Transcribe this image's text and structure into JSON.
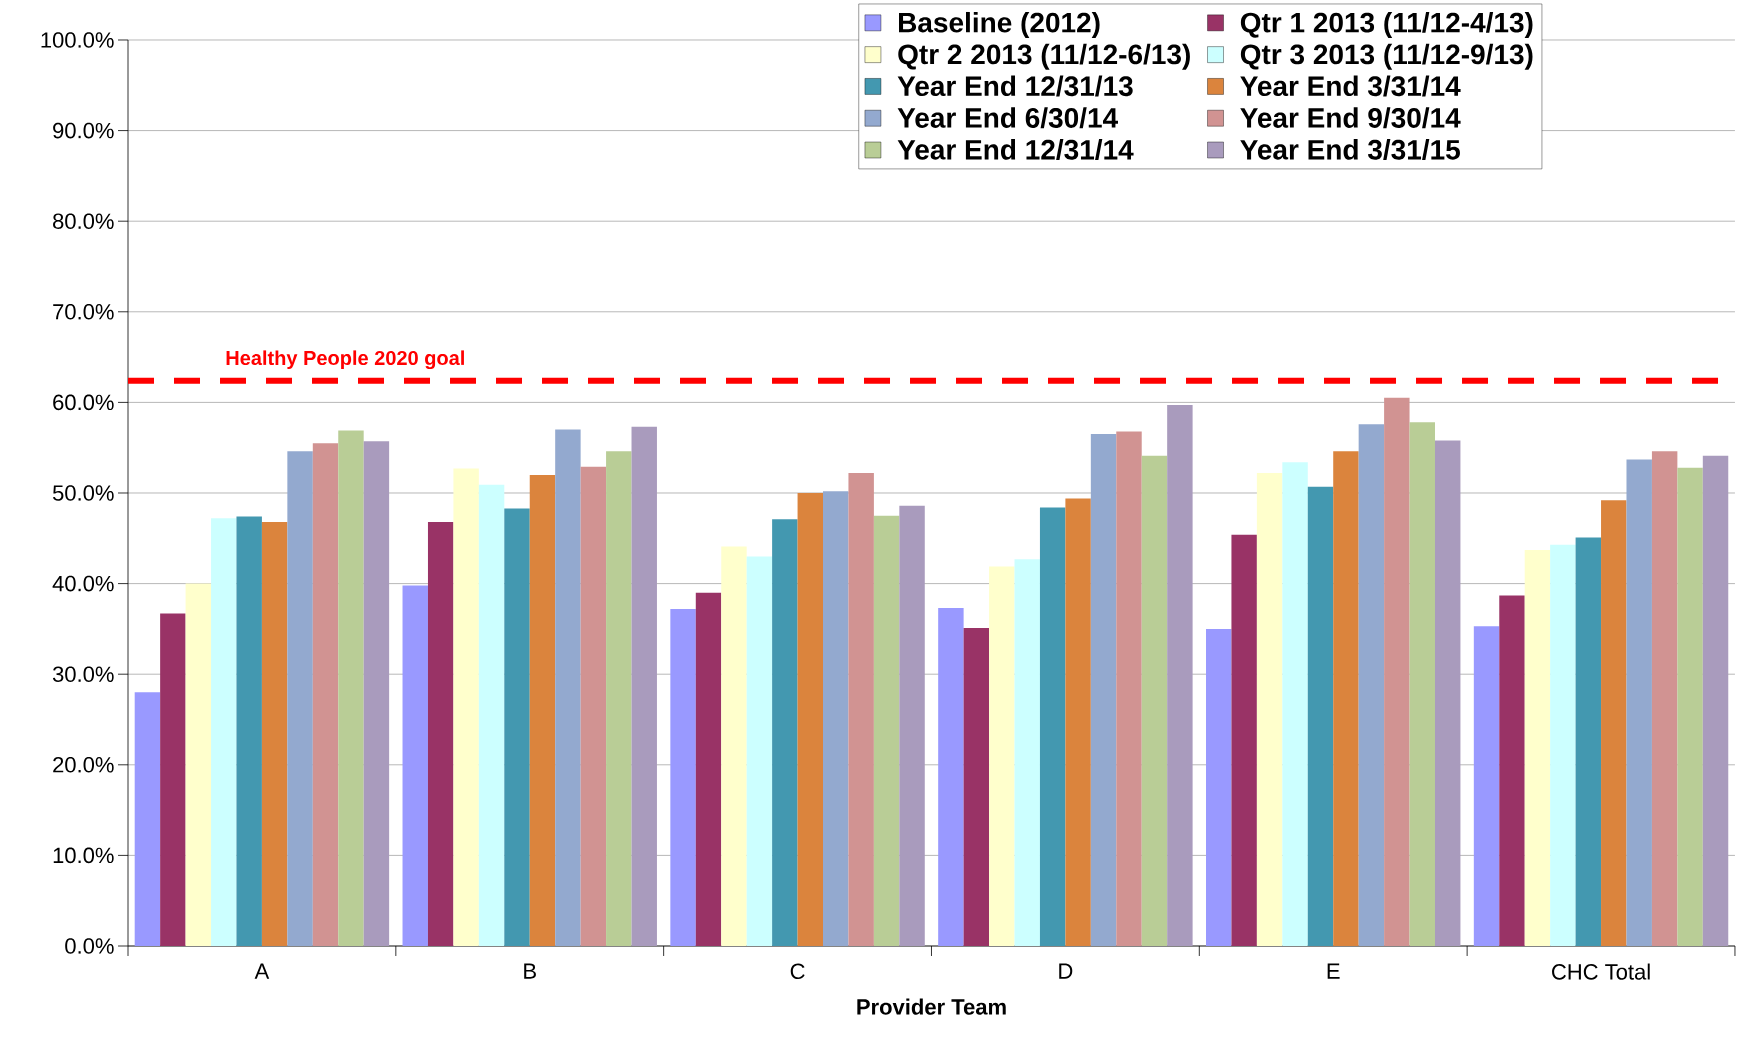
{
  "chart_data": {
    "type": "bar",
    "xlabel": "Provider Team",
    "categories": [
      "A",
      "B",
      "C",
      "D",
      "E",
      "CHC Total"
    ],
    "series": [
      {
        "name": "Baseline (2012)",
        "color": "#9999ff",
        "values": [
          28.0,
          39.8,
          37.2,
          37.3,
          35.0,
          35.3
        ]
      },
      {
        "name": "Qtr 1 2013 (11/12-4/13)",
        "color": "#993366",
        "values": [
          36.7,
          46.8,
          39.0,
          35.1,
          45.4,
          38.7
        ]
      },
      {
        "name": "Qtr 2 2013 (11/12-6/13)",
        "color": "#ffffcc",
        "values": [
          40.0,
          52.7,
          44.1,
          41.9,
          52.2,
          43.7
        ]
      },
      {
        "name": "Qtr 3 2013 (11/12-9/13)",
        "color": "#ccffff",
        "values": [
          47.2,
          50.9,
          43.0,
          42.7,
          53.4,
          44.3
        ]
      },
      {
        "name": "Year End 12/31/13",
        "color": "#4398b0",
        "values": [
          47.4,
          48.3,
          47.1,
          48.4,
          50.7,
          45.1
        ]
      },
      {
        "name": "Year End 3/31/14",
        "color": "#db843d",
        "values": [
          46.8,
          52.0,
          50.0,
          49.4,
          54.6,
          49.2
        ]
      },
      {
        "name": "Year End 6/30/14",
        "color": "#93a9cf",
        "values": [
          54.6,
          57.0,
          50.2,
          56.5,
          57.6,
          53.7
        ]
      },
      {
        "name": "Year End 9/30/14",
        "color": "#d19392",
        "values": [
          55.5,
          52.9,
          52.2,
          56.8,
          60.5,
          54.6
        ]
      },
      {
        "name": "Year End 12/31/14",
        "color": "#b9cd96",
        "values": [
          56.9,
          54.6,
          47.5,
          54.1,
          57.8,
          52.8
        ]
      },
      {
        "name": "Year End 3/31/15",
        "color": "#a99bbd",
        "values": [
          55.7,
          57.3,
          48.6,
          59.7,
          55.8,
          54.1
        ]
      }
    ],
    "ylim": [
      0,
      100
    ],
    "yticks": [
      {
        "value": 0,
        "label": "0.0%"
      },
      {
        "value": 10,
        "label": "10.0%"
      },
      {
        "value": 20,
        "label": "20.0%"
      },
      {
        "value": 30,
        "label": "30.0%"
      },
      {
        "value": 40,
        "label": "40.0%"
      },
      {
        "value": 50,
        "label": "50.0%"
      },
      {
        "value": 60,
        "label": "60.0%"
      },
      {
        "value": 70,
        "label": "70.0%"
      },
      {
        "value": 80,
        "label": "80.0%"
      },
      {
        "value": 90,
        "label": "90.0%"
      },
      {
        "value": 100,
        "label": "100.0%"
      }
    ],
    "ref_lines": [
      {
        "axis": "y",
        "value": 62.4,
        "label": "Healthy People 2020 goal",
        "color": "#ff0000",
        "line_style": "dashed"
      }
    ],
    "grid": "y",
    "legend": "top right"
  }
}
